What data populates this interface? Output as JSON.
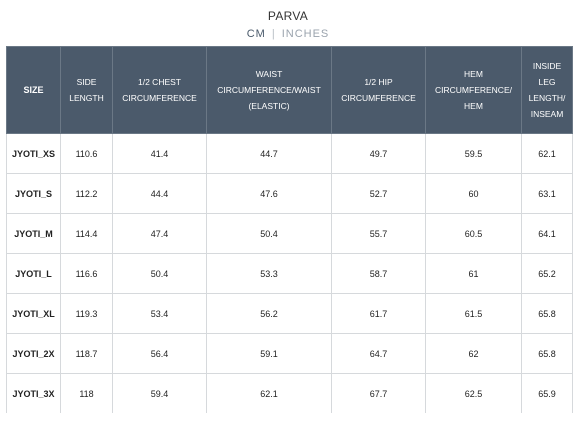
{
  "title": "PARVA",
  "units": {
    "cm": "CM",
    "separator": "|",
    "inches": "INCHES",
    "selected": "CM"
  },
  "colors": {
    "header_bg": "#4b5a6b",
    "header_text": "#ffffff",
    "active_unit": "#4a5a6b",
    "inactive_unit": "#9aa3ad"
  },
  "table": {
    "headers": [
      "SIZE",
      "SIDE LENGTH",
      "1/2 CHEST CIRCUMFERENCE",
      "WAIST CIRCUMFERENCE/WAIST (ELASTIC)",
      "1/2 HIP CIRCUMFERENCE",
      "HEM CIRCUMFERENCE/ HEM",
      "INSIDE LEG LENGTH/ INSEAM"
    ],
    "rows": [
      [
        "JYOTI_XS",
        "110.6",
        "41.4",
        "44.7",
        "49.7",
        "59.5",
        "62.1"
      ],
      [
        "JYOTI_S",
        "112.2",
        "44.4",
        "47.6",
        "52.7",
        "60",
        "63.1"
      ],
      [
        "JYOTI_M",
        "114.4",
        "47.4",
        "50.4",
        "55.7",
        "60.5",
        "64.1"
      ],
      [
        "JYOTI_L",
        "116.6",
        "50.4",
        "53.3",
        "58.7",
        "61",
        "65.2"
      ],
      [
        "JYOTI_XL",
        "119.3",
        "53.4",
        "56.2",
        "61.7",
        "61.5",
        "65.8"
      ],
      [
        "JYOTI_2X",
        "118.7",
        "56.4",
        "59.1",
        "64.7",
        "62",
        "65.8"
      ],
      [
        "JYOTI_3X",
        "118",
        "59.4",
        "62.1",
        "67.7",
        "62.5",
        "65.9"
      ]
    ]
  }
}
